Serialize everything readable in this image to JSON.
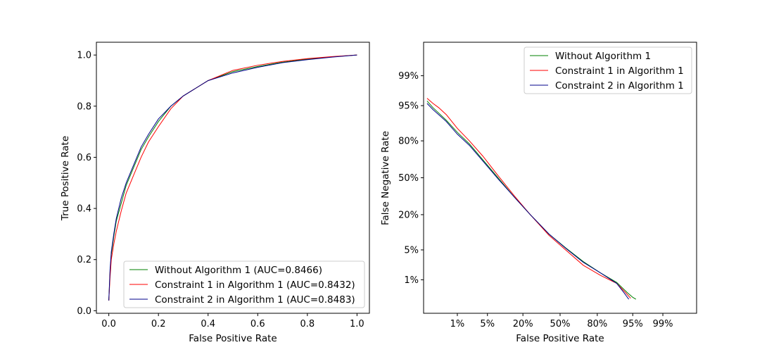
{
  "colors": {
    "green": "#008000",
    "red": "#ff0000",
    "blue": "#00008b"
  },
  "chart_data": [
    {
      "type": "line",
      "name": "roc",
      "xlabel": "False Positive Rate",
      "ylabel": "True Positive Rate",
      "xlim": [
        -0.05,
        1.05
      ],
      "ylim": [
        -0.01,
        1.05
      ],
      "xticks": [
        0.0,
        0.2,
        0.4,
        0.6,
        0.8,
        1.0
      ],
      "xtick_labels": [
        "0.0",
        "0.2",
        "0.4",
        "0.6",
        "0.8",
        "1.0"
      ],
      "yticks": [
        0.0,
        0.2,
        0.4,
        0.6,
        0.8,
        1.0
      ],
      "ytick_labels": [
        "0.0",
        "0.2",
        "0.4",
        "0.6",
        "0.8",
        "1.0"
      ],
      "legend": "lower-right",
      "series": [
        {
          "name": "Without Algorithm 1 (AUC=0.8466)",
          "color": "green",
          "x": [
            0,
            0.005,
            0.01,
            0.02,
            0.03,
            0.05,
            0.07,
            0.1,
            0.13,
            0.16,
            0.2,
            0.25,
            0.3,
            0.35,
            0.4,
            0.5,
            0.6,
            0.7,
            0.8,
            0.9,
            1.0
          ],
          "y": [
            0.04,
            0.15,
            0.22,
            0.29,
            0.35,
            0.42,
            0.49,
            0.56,
            0.63,
            0.68,
            0.74,
            0.8,
            0.84,
            0.87,
            0.9,
            0.935,
            0.955,
            0.972,
            0.984,
            0.993,
            1.0
          ]
        },
        {
          "name": "Constraint 1 in Algorithm 1 (AUC=0.8432)",
          "color": "red",
          "x": [
            0,
            0.005,
            0.01,
            0.02,
            0.03,
            0.05,
            0.07,
            0.1,
            0.13,
            0.16,
            0.2,
            0.25,
            0.3,
            0.35,
            0.4,
            0.5,
            0.6,
            0.7,
            0.8,
            0.9,
            1.0
          ],
          "y": [
            0.04,
            0.13,
            0.2,
            0.26,
            0.31,
            0.39,
            0.46,
            0.53,
            0.6,
            0.66,
            0.72,
            0.79,
            0.84,
            0.87,
            0.9,
            0.94,
            0.96,
            0.975,
            0.986,
            0.994,
            1.0
          ]
        },
        {
          "name": "Constraint 2 in Algorithm 1 (AUC=0.8483)",
          "color": "blue",
          "x": [
            0,
            0.005,
            0.01,
            0.02,
            0.03,
            0.05,
            0.07,
            0.1,
            0.13,
            0.16,
            0.2,
            0.25,
            0.3,
            0.35,
            0.4,
            0.5,
            0.6,
            0.7,
            0.8,
            0.9,
            1.0
          ],
          "y": [
            0.04,
            0.16,
            0.23,
            0.3,
            0.36,
            0.44,
            0.5,
            0.57,
            0.64,
            0.69,
            0.75,
            0.8,
            0.84,
            0.87,
            0.9,
            0.93,
            0.952,
            0.97,
            0.982,
            0.992,
            1.0
          ]
        }
      ]
    },
    {
      "type": "line",
      "name": "det",
      "xlabel": "False Positive Rate",
      "ylabel": "False Negative Rate",
      "scale": "probit",
      "xlim": [
        0.001,
        0.999
      ],
      "ylim": [
        0.001,
        0.999
      ],
      "xticks": [
        0.01,
        0.05,
        0.2,
        0.5,
        0.8,
        0.95,
        0.99
      ],
      "xtick_labels": [
        "1%",
        "5%",
        "20%",
        "50%",
        "80%",
        "95%",
        "99%"
      ],
      "yticks": [
        0.01,
        0.05,
        0.2,
        0.5,
        0.8,
        0.95,
        0.99
      ],
      "ytick_labels": [
        "1%",
        "5%",
        "20%",
        "50%",
        "80%",
        "95%",
        "99%"
      ],
      "legend": "top-right",
      "series": [
        {
          "name": "Without Algorithm 1",
          "color": "green",
          "x": [
            0.0013,
            0.002,
            0.003,
            0.005,
            0.01,
            0.02,
            0.04,
            0.08,
            0.15,
            0.25,
            0.4,
            0.55,
            0.7,
            0.82,
            0.9,
            0.935,
            0.95,
            0.957
          ],
          "y": [
            0.96,
            0.945,
            0.93,
            0.905,
            0.85,
            0.78,
            0.66,
            0.5,
            0.33,
            0.2,
            0.1,
            0.055,
            0.028,
            0.015,
            0.0085,
            0.0045,
            0.0032,
            0.0028
          ]
        },
        {
          "name": "Constraint 1 in Algorithm 1",
          "color": "red",
          "x": [
            0.0013,
            0.002,
            0.003,
            0.005,
            0.01,
            0.02,
            0.04,
            0.08,
            0.15,
            0.25,
            0.4,
            0.55,
            0.7,
            0.82,
            0.9,
            0.93,
            0.945
          ],
          "y": [
            0.965,
            0.955,
            0.945,
            0.925,
            0.87,
            0.8,
            0.69,
            0.52,
            0.34,
            0.2,
            0.095,
            0.05,
            0.023,
            0.013,
            0.008,
            0.0045,
            0.003
          ]
        },
        {
          "name": "Constraint 2 in Algorithm 1",
          "color": "blue",
          "x": [
            0.0013,
            0.002,
            0.003,
            0.005,
            0.01,
            0.02,
            0.04,
            0.08,
            0.15,
            0.25,
            0.4,
            0.55,
            0.7,
            0.82,
            0.9,
            0.925,
            0.94
          ],
          "y": [
            0.955,
            0.94,
            0.925,
            0.9,
            0.84,
            0.77,
            0.65,
            0.49,
            0.33,
            0.2,
            0.1,
            0.054,
            0.027,
            0.015,
            0.008,
            0.0045,
            0.0028
          ]
        }
      ]
    }
  ]
}
